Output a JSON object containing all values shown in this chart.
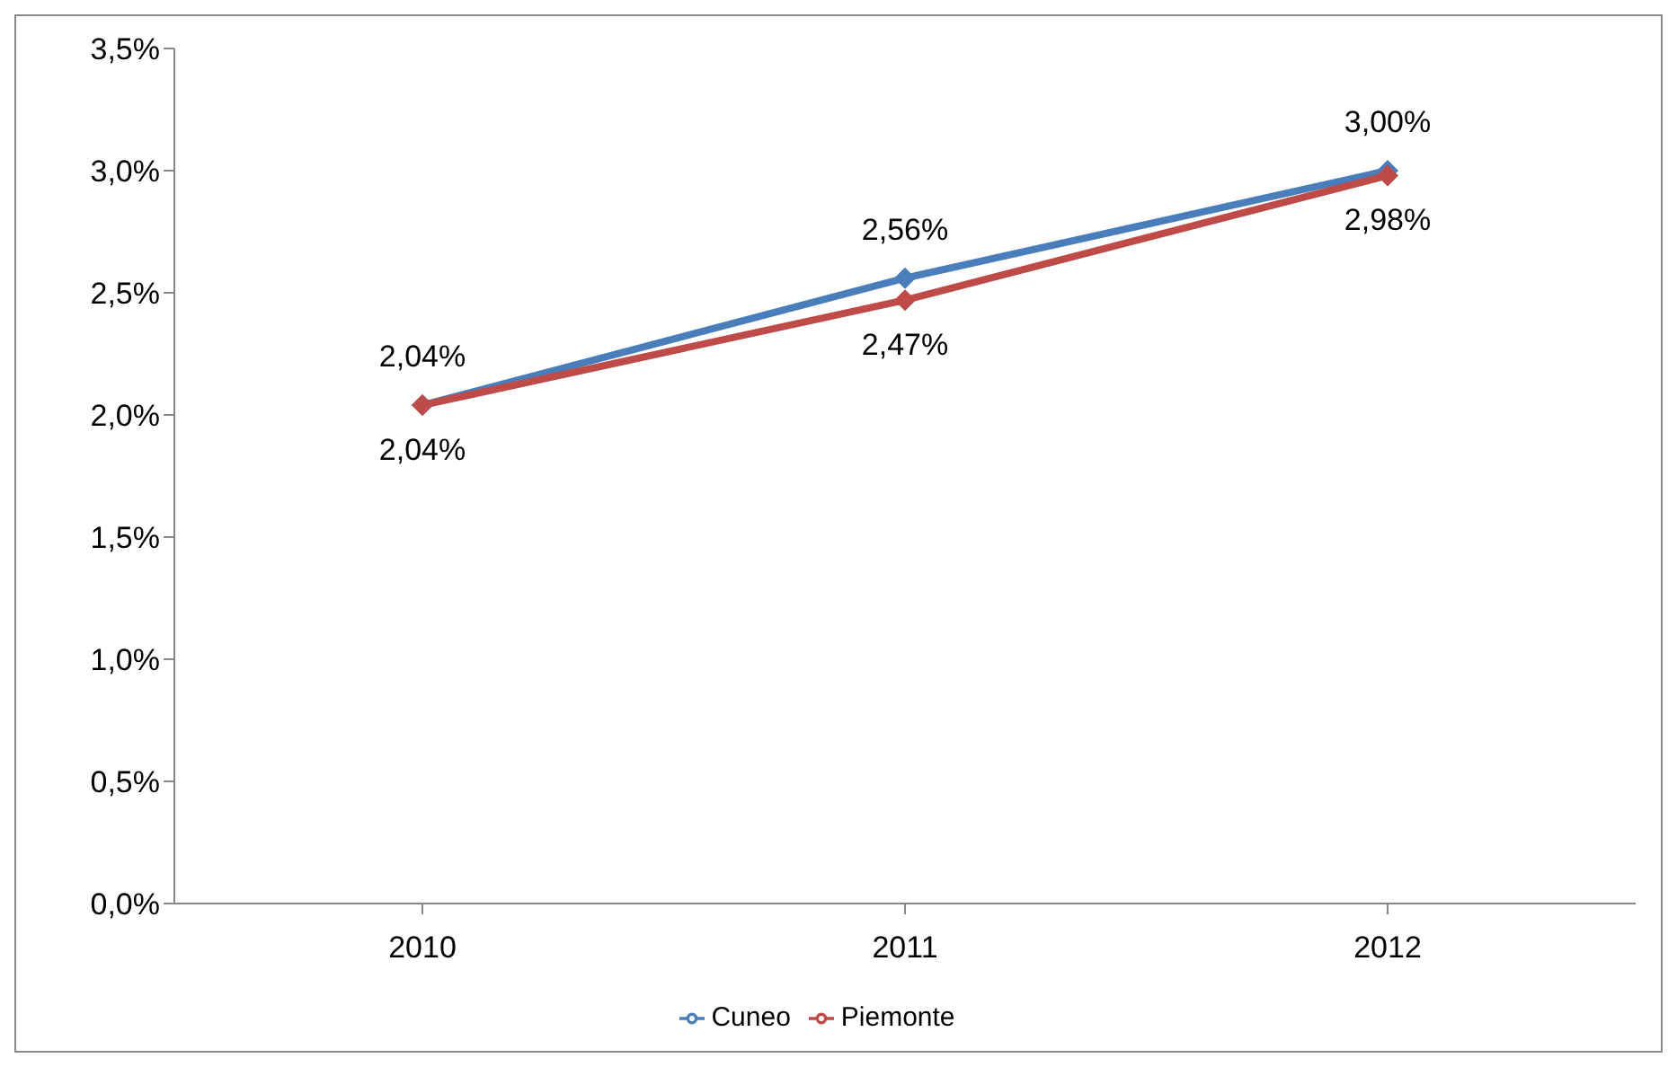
{
  "chart_data": {
    "type": "line",
    "categories": [
      "2010",
      "2011",
      "2012"
    ],
    "series": [
      {
        "name": "Cuneo",
        "color": "#4a7ebb",
        "values": [
          2.04,
          2.56,
          3.0
        ],
        "value_labels": [
          "2,04%",
          "2,56%",
          "3,00%"
        ]
      },
      {
        "name": "Piemonte",
        "color": "#be4b48",
        "values": [
          2.04,
          2.47,
          2.98
        ],
        "value_labels": [
          "2,04%",
          "2,47%",
          "2,98%"
        ]
      }
    ],
    "ylim": [
      0,
      3.5
    ],
    "yticks": [
      {
        "value": 0,
        "label": "0,0%"
      },
      {
        "value": 0.5,
        "label": "0,5%"
      },
      {
        "value": 1,
        "label": "1,0%"
      },
      {
        "value": 1.5,
        "label": "1,5%"
      },
      {
        "value": 2,
        "label": "2,0%"
      },
      {
        "value": 2.5,
        "label": "2,5%"
      },
      {
        "value": 3,
        "label": "3,0%"
      },
      {
        "value": 3.5,
        "label": "3,5%"
      }
    ],
    "grid": false,
    "legend": "bottom",
    "marker": "diamond",
    "line_style": "solid"
  }
}
